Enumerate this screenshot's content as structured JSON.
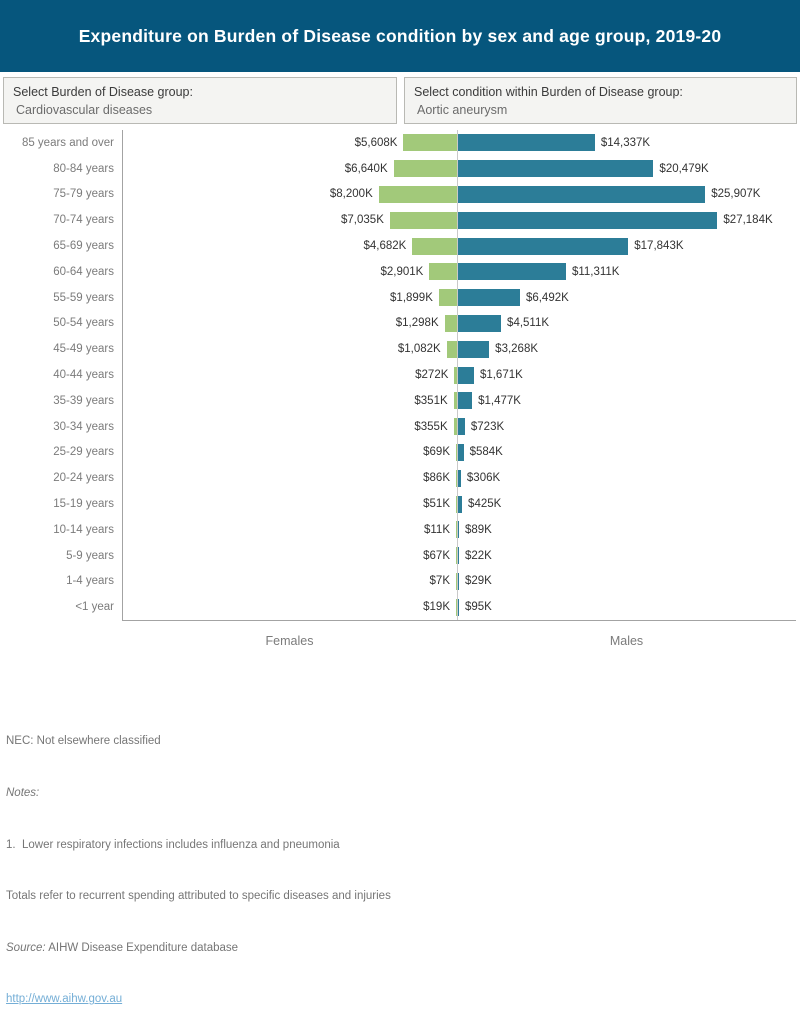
{
  "header": {
    "title": "Expenditure on Burden of Disease condition by sex and age group, 2019-20"
  },
  "filters": [
    {
      "label": "Select Burden of Disease group:",
      "value": "Cardiovascular diseases"
    },
    {
      "label": "Select condition within Burden of Disease group:",
      "value": "Aortic aneurysm"
    }
  ],
  "chart_data": {
    "type": "bar",
    "variant": "diverging-butterfly",
    "title": "Expenditure on Burden of Disease condition by sex and age group, 2019-20",
    "categories": [
      "85 years and over",
      "80-84 years",
      "75-79 years",
      "70-74 years",
      "65-69 years",
      "60-64 years",
      "55-59 years",
      "50-54 years",
      "45-49 years",
      "40-44 years",
      "35-39 years",
      "30-34 years",
      "25-29 years",
      "20-24 years",
      "15-19 years",
      "10-14 years",
      "5-9 years",
      "1-4 years",
      "<1 year"
    ],
    "series": [
      {
        "name": "Females",
        "side": "left",
        "color": "#a2c97a",
        "values_k": [
          5608,
          6640,
          8200,
          7035,
          4682,
          2901,
          1899,
          1298,
          1082,
          272,
          351,
          355,
          69,
          86,
          51,
          11,
          67,
          7,
          19
        ],
        "labels": [
          "$5,608K",
          "$6,640K",
          "$8,200K",
          "$7,035K",
          "$4,682K",
          "$2,901K",
          "$1,899K",
          "$1,298K",
          "$1,082K",
          "$272K",
          "$351K",
          "$355K",
          "$69K",
          "$86K",
          "$51K",
          "$11K",
          "$67K",
          "$7K",
          "$19K"
        ]
      },
      {
        "name": "Males",
        "side": "right",
        "color": "#2c7d98",
        "values_k": [
          14337,
          20479,
          25907,
          27184,
          17843,
          11311,
          6492,
          4511,
          3268,
          1671,
          1477,
          723,
          584,
          306,
          425,
          89,
          22,
          29,
          95
        ],
        "labels": [
          "$14,337K",
          "$20,479K",
          "$25,907K",
          "$27,184K",
          "$17,843K",
          "$11,311K",
          "$6,492K",
          "$4,511K",
          "$3,268K",
          "$1,671K",
          "$1,477K",
          "$723K",
          "$584K",
          "$306K",
          "$425K",
          "$89K",
          "$22K",
          "$29K",
          "$95K"
        ]
      }
    ],
    "axis": {
      "shared_max_k": 35000,
      "left_caption": "Females",
      "right_caption": "Males",
      "gridlines": false,
      "legend": "none",
      "center_line_color": "#c9c9c9"
    }
  },
  "footer": {
    "nec": "NEC: Not elsewhere classified",
    "notes_label": "Notes:",
    "note1": "1.  Lower respiratory infections includes influenza and pneumonia",
    "totals": "Totals refer to recurrent spending attributed to specific diseases and injuries",
    "source_label": "Source:",
    "source_text": " AIHW Disease Expenditure database",
    "link": "http://www.aihw.gov.au"
  },
  "colors": {
    "header_bg": "#06567d",
    "female_bar": "#a2c97a",
    "male_bar": "#2c7d98",
    "link": "#74aed6"
  }
}
